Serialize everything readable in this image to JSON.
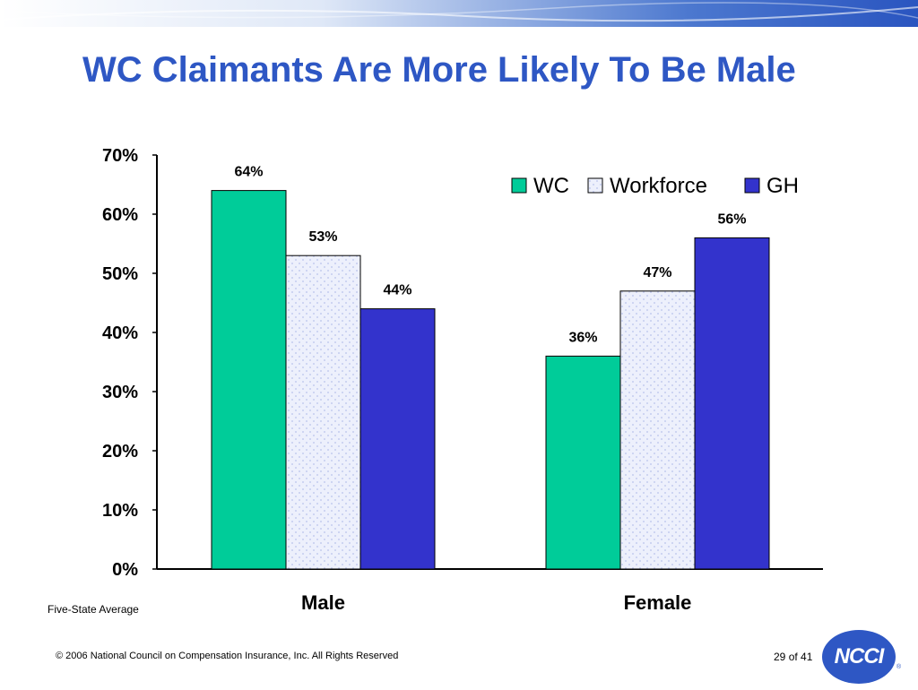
{
  "slide": {
    "title": "WC Claimants Are More Likely To Be Male",
    "footnote": "Five-State Average",
    "copyright": "© 2006 National Council on Compensation Insurance, Inc. All Rights Reserved",
    "page_number": "29",
    "page_of": "of 41",
    "logo_text": "NCCI",
    "logo_mark": "®"
  },
  "colors": {
    "title": "#2e57c4",
    "banner": "#2f5fc9",
    "wc": "#00cc99",
    "workforce": "#e8ebfb",
    "gh": "#3333cc"
  },
  "chart_data": {
    "type": "bar",
    "categories": [
      "Male",
      "Female"
    ],
    "series": [
      {
        "name": "WC",
        "values": [
          64,
          36
        ],
        "labels": [
          "64%",
          "36%"
        ]
      },
      {
        "name": "Workforce",
        "values": [
          53,
          47
        ],
        "labels": [
          "53%",
          "47%"
        ]
      },
      {
        "name": "GH",
        "values": [
          44,
          56
        ],
        "labels": [
          "44%",
          "56%"
        ]
      }
    ],
    "ylim": [
      0,
      70
    ],
    "yticks": [
      "0%",
      "10%",
      "20%",
      "30%",
      "40%",
      "50%",
      "60%",
      "70%"
    ],
    "legend_position": "top-right",
    "grid": false
  }
}
